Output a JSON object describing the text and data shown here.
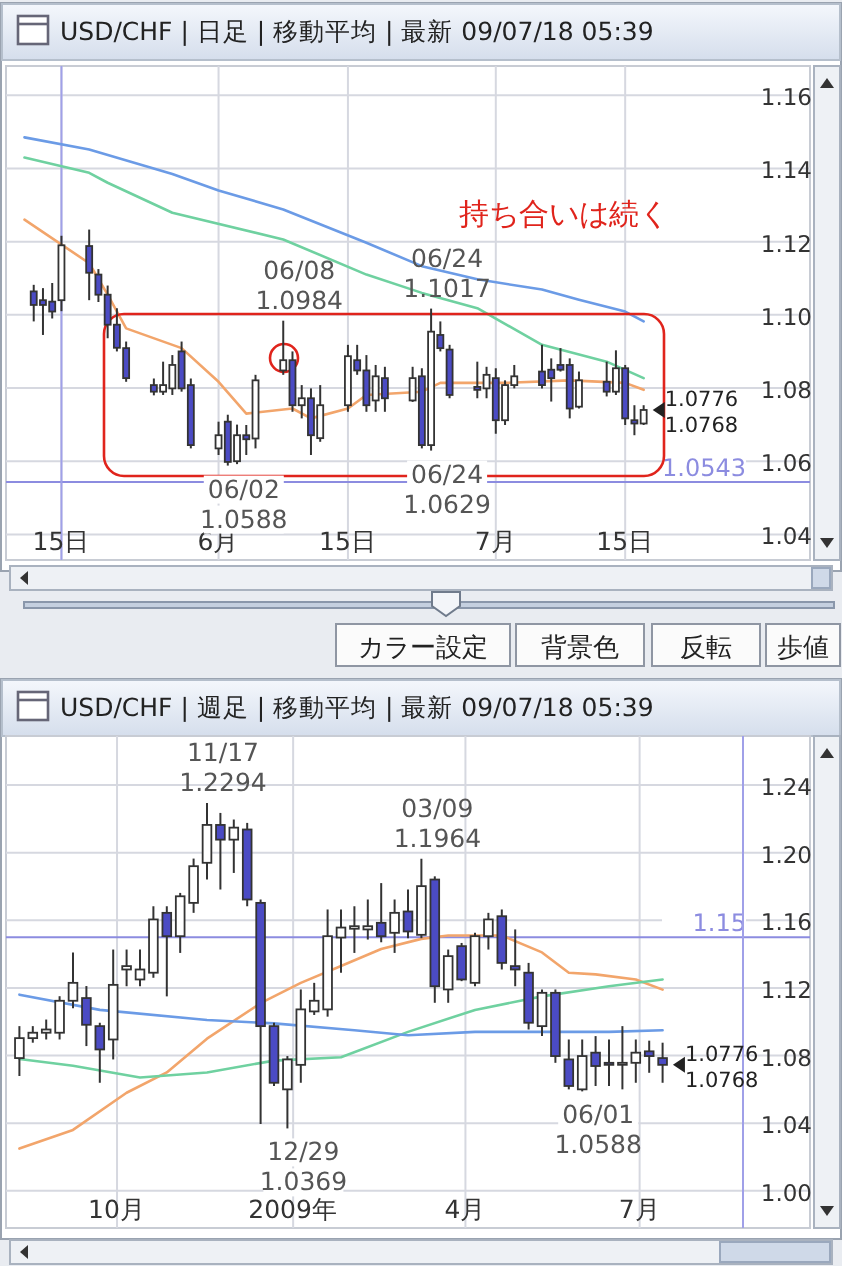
{
  "chart_data": [
    {
      "type": "candlestick",
      "title": "USD/CHF | 日足 | 移動平均 | 最新 09/07/18 05:39",
      "grid": true,
      "xlim": [
        "2009-05-09",
        "2009-08-04"
      ],
      "ylim": [
        1.033,
        1.168
      ],
      "xticks": [
        {
          "value": "2009-05-15",
          "label": "15日"
        },
        {
          "value": "2009-06-01",
          "label": "6月"
        },
        {
          "value": "2009-06-15",
          "label": "15日"
        },
        {
          "value": "2009-07-01",
          "label": "7月"
        },
        {
          "value": "2009-07-15",
          "label": "15日"
        }
      ],
      "yticks": [
        {
          "value": 1.04,
          "label": "1.04"
        },
        {
          "value": 1.06,
          "label": "1.06"
        },
        {
          "value": 1.08,
          "label": "1.08"
        },
        {
          "value": 1.1,
          "label": "1.10"
        },
        {
          "value": 1.12,
          "label": "1.12"
        },
        {
          "value": 1.14,
          "label": "1.14"
        },
        {
          "value": 1.16,
          "label": "1.16"
        }
      ],
      "x": [
        "2009-05-12",
        "2009-05-13",
        "2009-05-14",
        "2009-05-15",
        "2009-05-18",
        "2009-05-19",
        "2009-05-20",
        "2009-05-21",
        "2009-05-22",
        "2009-05-25",
        "2009-05-26",
        "2009-05-27",
        "2009-05-28",
        "2009-05-29",
        "2009-06-01",
        "2009-06-02",
        "2009-06-03",
        "2009-06-04",
        "2009-06-05",
        "2009-06-08",
        "2009-06-09",
        "2009-06-10",
        "2009-06-11",
        "2009-06-12",
        "2009-06-15",
        "2009-06-16",
        "2009-06-17",
        "2009-06-18",
        "2009-06-19",
        "2009-06-22",
        "2009-06-23",
        "2009-06-24",
        "2009-06-25",
        "2009-06-26",
        "2009-06-29",
        "2009-06-30",
        "2009-07-01",
        "2009-07-02",
        "2009-07-03",
        "2009-07-06",
        "2009-07-07",
        "2009-07-08",
        "2009-07-09",
        "2009-07-10",
        "2009-07-13",
        "2009-07-14",
        "2009-07-15",
        "2009-07-16",
        "2009-07-17"
      ],
      "ohlc": [
        [
          1.1064,
          1.1082,
          1.0982,
          1.1027
        ],
        [
          1.104,
          1.1073,
          1.0945,
          1.1027
        ],
        [
          1.1036,
          1.1087,
          1.099,
          1.1009
        ],
        [
          1.104,
          1.1216,
          1.101,
          1.119
        ],
        [
          1.1188,
          1.1233,
          1.104,
          1.1115
        ],
        [
          1.111,
          1.1125,
          1.1035,
          1.1055
        ],
        [
          1.1055,
          1.108,
          1.0936,
          1.0973
        ],
        [
          1.0973,
          1.1018,
          1.09,
          1.091
        ],
        [
          1.0909,
          1.0927,
          1.0817,
          1.0827
        ],
        [
          1.0808,
          1.0826,
          1.078,
          1.079
        ],
        [
          1.079,
          1.0872,
          1.0781,
          1.0808
        ],
        [
          1.0799,
          1.089,
          1.0781,
          1.0863
        ],
        [
          1.09,
          1.0927,
          1.079,
          1.0799
        ],
        [
          1.0808,
          1.0826,
          1.0635,
          1.0644
        ],
        [
          1.0635,
          1.0708,
          1.0617,
          1.0671
        ],
        [
          1.0708,
          1.0727,
          1.0588,
          1.0598
        ],
        [
          1.06,
          1.07,
          1.0592,
          1.0671
        ],
        [
          1.0671,
          1.0699,
          1.0617,
          1.066
        ],
        [
          1.0662,
          1.0836,
          1.0635,
          1.0821
        ],
        [
          1.0848,
          1.0984,
          1.0836,
          1.0876
        ],
        [
          1.0876,
          1.09,
          1.0735,
          1.0753
        ],
        [
          1.0753,
          1.0808,
          1.0717,
          1.0772
        ],
        [
          1.0772,
          1.0799,
          1.0617,
          1.0671
        ],
        [
          1.0663,
          1.0808,
          1.0653,
          1.0753
        ],
        [
          1.0753,
          1.0918,
          1.0735,
          1.0887
        ],
        [
          1.0876,
          1.0918,
          1.0836,
          1.0848
        ],
        [
          1.0848,
          1.089,
          1.0735,
          1.0753
        ],
        [
          1.0766,
          1.0863,
          1.0735,
          1.0832
        ],
        [
          1.0827,
          1.0858,
          1.0735,
          1.0772
        ],
        [
          1.0766,
          1.0858,
          1.0762,
          1.0827
        ],
        [
          1.0832,
          1.0854,
          1.0635,
          1.0644
        ],
        [
          1.0644,
          1.1017,
          1.0629,
          1.0954
        ],
        [
          1.0945,
          1.0982,
          1.09,
          1.0909
        ],
        [
          1.0905,
          1.0918,
          1.0772,
          1.0781
        ],
        [
          1.0803,
          1.0872,
          1.0772,
          1.0795
        ],
        [
          1.0799,
          1.0858,
          1.0772,
          1.0836
        ],
        [
          1.0827,
          1.0854,
          1.0675,
          1.0712
        ],
        [
          1.0712,
          1.0821,
          1.0699,
          1.0808
        ],
        [
          1.0808,
          1.0863,
          1.0799,
          1.0832
        ],
        [
          1.0845,
          1.0918,
          1.0799,
          1.0808
        ],
        [
          1.085,
          1.0881,
          1.0763,
          1.0827
        ],
        [
          1.0863,
          1.0909,
          1.0845,
          1.085
        ],
        [
          1.0863,
          1.0881,
          1.0717,
          1.0744
        ],
        [
          1.0749,
          1.0845,
          1.0744,
          1.0821
        ],
        [
          1.0817,
          1.0872,
          1.0777,
          1.079
        ],
        [
          1.079,
          1.0903,
          1.0781,
          1.0854
        ],
        [
          1.0854,
          1.0863,
          1.0699,
          1.0717
        ],
        [
          1.0712,
          1.0753,
          1.0671,
          1.0703
        ],
        [
          1.0703,
          1.0753,
          1.0699,
          1.074
        ]
      ],
      "series": [
        {
          "type": "line",
          "color": "#6b9be6",
          "x": [
            "2009-05-11",
            "2009-05-18",
            "2009-05-27",
            "2009-06-01",
            "2009-06-08",
            "2009-06-17",
            "2009-06-23",
            "2009-06-29",
            "2009-07-06",
            "2009-07-10",
            "2009-07-15",
            "2009-07-17"
          ],
          "values": [
            1.1485,
            1.1452,
            1.1385,
            1.134,
            1.1288,
            1.1197,
            1.1133,
            1.1097,
            1.1069,
            1.1041,
            1.1009,
            1.0982
          ]
        },
        {
          "type": "line",
          "color": "#6fd1a0",
          "x": [
            "2009-05-11",
            "2009-05-18",
            "2009-05-20",
            "2009-05-27",
            "2009-06-08",
            "2009-06-17",
            "2009-06-23",
            "2009-06-29",
            "2009-07-06",
            "2009-07-13",
            "2009-07-17"
          ],
          "values": [
            1.143,
            1.1388,
            1.1361,
            1.1279,
            1.1206,
            1.111,
            1.106,
            1.1018,
            1.0918,
            1.0872,
            1.0827
          ]
        },
        {
          "type": "line",
          "color": "#f2a56b",
          "x": [
            "2009-05-11",
            "2009-05-18",
            "2009-05-20",
            "2009-05-22",
            "2009-05-28",
            "2009-06-01",
            "2009-06-04",
            "2009-06-09",
            "2009-06-11",
            "2009-06-15",
            "2009-06-17",
            "2009-06-23",
            "2009-06-25",
            "2009-07-02",
            "2009-07-09",
            "2009-07-15",
            "2009-07-17"
          ],
          "values": [
            1.126,
            1.1141,
            1.1055,
            1.0963,
            1.0909,
            1.0817,
            1.073,
            1.0744,
            1.0717,
            1.0744,
            1.0781,
            1.079,
            1.0814,
            1.0814,
            1.0821,
            1.0814,
            1.0795
          ]
        }
      ],
      "ref_lines": [
        {
          "axis": "y",
          "value": 1.0543,
          "label": "1.0543",
          "color": "#8c8ce0"
        },
        {
          "axis": "x",
          "value": "2009-05-15",
          "color": "#a0a0e8"
        }
      ],
      "annotations": [
        "1.0776",
        "1.0768",
        "持ち合いは続く",
        "カラー設定",
        "背景色",
        "反転",
        "歩値",
        {
          "text": "06/08\n1.0984",
          "x": "2009-06-08",
          "y": 1.0984
        },
        {
          "text": "06/24\n1.1017",
          "x": "2009-06-24",
          "y": 1.1017
        },
        {
          "text": "06/02\n1.0588",
          "x": "2009-06-02",
          "y": 1.0588
        },
        {
          "text": "06/24\n1.0629",
          "x": "2009-06-24",
          "y": 1.0629
        }
      ]
    },
    {
      "type": "candlestick",
      "title": "USD/CHF | 週足 | 移動平均 | 最新 09/07/18 05:39",
      "grid": true,
      "xlim": [
        "2008-08-04",
        "2009-09-28"
      ],
      "ylim": [
        0.978,
        1.269
      ],
      "xticks": [
        {
          "value": "2008-10-01",
          "label": "10月"
        },
        {
          "value": "2009-01-01",
          "label": "2009年"
        },
        {
          "value": "2009-04-01",
          "label": "4月"
        },
        {
          "value": "2009-07-01",
          "label": "7月"
        }
      ],
      "yticks": [
        {
          "value": 1.0,
          "label": "1.00"
        },
        {
          "value": 1.04,
          "label": "1.04"
        },
        {
          "value": 1.08,
          "label": "1.08"
        },
        {
          "value": 1.12,
          "label": "1.12"
        },
        {
          "value": 1.16,
          "label": "1.16"
        },
        {
          "value": 1.2,
          "label": "1.20"
        },
        {
          "value": 1.24,
          "label": "1.24"
        }
      ],
      "x": [
        "2008-08-11",
        "2008-08-18",
        "2008-08-25",
        "2008-09-01",
        "2008-09-08",
        "2008-09-15",
        "2008-09-22",
        "2008-09-29",
        "2008-10-06",
        "2008-10-13",
        "2008-10-20",
        "2008-10-27",
        "2008-11-03",
        "2008-11-10",
        "2008-11-17",
        "2008-11-24",
        "2008-12-01",
        "2008-12-08",
        "2008-12-15",
        "2008-12-22",
        "2008-12-29",
        "2009-01-05",
        "2009-01-12",
        "2009-01-19",
        "2009-01-26",
        "2009-02-02",
        "2009-02-09",
        "2009-02-16",
        "2009-02-23",
        "2009-03-02",
        "2009-03-09",
        "2009-03-16",
        "2009-03-23",
        "2009-03-30",
        "2009-04-06",
        "2009-04-13",
        "2009-04-20",
        "2009-04-27",
        "2009-05-04",
        "2009-05-11",
        "2009-05-18",
        "2009-05-25",
        "2009-06-01",
        "2009-06-08",
        "2009-06-15",
        "2009-06-22",
        "2009-06-29",
        "2009-07-06",
        "2009-07-13"
      ],
      "ohlc": [
        [
          1.0785,
          1.0974,
          1.0679,
          1.0903
        ],
        [
          1.0903,
          1.0974,
          1.0876,
          1.0935
        ],
        [
          1.0935,
          1.1013,
          1.0895,
          1.0954
        ],
        [
          1.0935,
          1.1151,
          1.0895,
          1.1124
        ],
        [
          1.1124,
          1.141,
          1.108,
          1.123
        ],
        [
          1.114,
          1.1211,
          1.0856,
          1.0982
        ],
        [
          1.0974,
          1.0994,
          1.0639,
          1.0836
        ],
        [
          1.0895,
          1.1427,
          1.0777,
          1.1218
        ],
        [
          1.1309,
          1.1427,
          1.121,
          1.1329
        ],
        [
          1.125,
          1.1427,
          1.121,
          1.1309
        ],
        [
          1.129,
          1.1683,
          1.126,
          1.1605
        ],
        [
          1.1644,
          1.1683,
          1.115,
          1.1506
        ],
        [
          1.1506,
          1.1762,
          1.1407,
          1.1742
        ],
        [
          1.1703,
          1.1965,
          1.1644,
          1.192
        ],
        [
          1.194,
          1.2294,
          1.1841,
          1.2164
        ],
        [
          1.2164,
          1.2235,
          1.1782,
          1.2077
        ],
        [
          1.2077,
          1.2196,
          1.188,
          1.2148
        ],
        [
          1.2137,
          1.2176,
          1.1683,
          1.1723
        ],
        [
          1.1703,
          1.1723,
          1.0395,
          1.0974
        ],
        [
          1.0974,
          1.0994,
          1.062,
          1.0639
        ],
        [
          1.06,
          1.0797,
          1.0369,
          1.0777
        ],
        [
          1.0745,
          1.1191,
          1.0639,
          1.1073
        ],
        [
          1.1061,
          1.123,
          1.104,
          1.1124
        ],
        [
          1.1073,
          1.1664,
          1.103,
          1.1506
        ],
        [
          1.1498,
          1.1664,
          1.129,
          1.1557
        ],
        [
          1.155,
          1.1683,
          1.1407,
          1.1565
        ],
        [
          1.1546,
          1.1723,
          1.1486,
          1.1565
        ],
        [
          1.1585,
          1.182,
          1.147,
          1.1506
        ],
        [
          1.1526,
          1.1723,
          1.1407,
          1.1644
        ],
        [
          1.1652,
          1.1782,
          1.1494,
          1.1534
        ],
        [
          1.1514,
          1.1964,
          1.1494,
          1.1802
        ],
        [
          1.1841,
          1.186,
          1.1112,
          1.121
        ],
        [
          1.1191,
          1.1427,
          1.1112,
          1.1388
        ],
        [
          1.1447,
          1.1466,
          1.124,
          1.125
        ],
        [
          1.123,
          1.1526,
          1.121,
          1.1506
        ],
        [
          1.1506,
          1.1644,
          1.1427,
          1.1605
        ],
        [
          1.1624,
          1.1664,
          1.1309,
          1.1348
        ],
        [
          1.1329,
          1.1546,
          1.121,
          1.1309
        ],
        [
          1.129,
          1.1348,
          1.0954,
          1.0994
        ],
        [
          1.0974,
          1.1191,
          1.0915,
          1.1171
        ],
        [
          1.1171,
          1.1191,
          1.0757,
          1.0797
        ],
        [
          1.0777,
          1.0895,
          1.06,
          1.062
        ],
        [
          1.06,
          1.0895,
          1.0588,
          1.0797
        ],
        [
          1.0817,
          1.0915,
          1.062,
          1.0738
        ],
        [
          1.0757,
          1.0895,
          1.062,
          1.0745
        ],
        [
          1.0751,
          1.0974,
          1.06,
          1.0757
        ],
        [
          1.0757,
          1.0895,
          1.0639,
          1.0817
        ],
        [
          1.0825,
          1.0888,
          1.0698,
          1.0797
        ],
        [
          1.0785,
          1.0876,
          1.0639,
          1.0745
        ]
      ],
      "series": [
        {
          "type": "line",
          "color": "#f2a56b",
          "x": [
            "2008-08-11",
            "2008-09-08",
            "2008-10-06",
            "2008-10-27",
            "2008-11-17",
            "2008-12-15",
            "2009-01-05",
            "2009-01-26",
            "2009-02-16",
            "2009-03-09",
            "2009-03-23",
            "2009-04-20",
            "2009-05-11",
            "2009-05-25",
            "2009-06-08",
            "2009-06-29",
            "2009-07-13"
          ],
          "values": [
            1.025,
            1.036,
            1.058,
            1.07,
            1.09,
            1.111,
            1.123,
            1.133,
            1.143,
            1.149,
            1.151,
            1.151,
            1.141,
            1.129,
            1.128,
            1.125,
            1.119
          ]
        },
        {
          "type": "line",
          "color": "#6fd1a0",
          "x": [
            "2008-08-11",
            "2008-09-08",
            "2008-10-13",
            "2008-11-17",
            "2008-12-22",
            "2009-01-26",
            "2009-03-02",
            "2009-04-06",
            "2009-05-11",
            "2009-06-15",
            "2009-07-13"
          ],
          "values": [
            1.078,
            1.074,
            1.067,
            1.07,
            1.077,
            1.079,
            1.094,
            1.107,
            1.115,
            1.121,
            1.125
          ]
        },
        {
          "type": "line",
          "color": "#6b9be6",
          "x": [
            "2008-08-11",
            "2008-09-22",
            "2008-11-17",
            "2008-12-22",
            "2009-02-02",
            "2009-03-02",
            "2009-04-06",
            "2009-05-11",
            "2009-06-15",
            "2009-07-13"
          ],
          "values": [
            1.116,
            1.107,
            1.101,
            1.099,
            1.095,
            1.092,
            1.094,
            1.094,
            1.094,
            1.095
          ]
        }
      ],
      "ref_lines": [
        {
          "axis": "y",
          "value": 1.15,
          "label": "1.15",
          "color": "#8c8ce0"
        },
        {
          "axis": "x",
          "value": "2009-08-24",
          "color": "#a0a0e8"
        }
      ],
      "annotations": [
        "1.0776",
        "1.0768",
        {
          "text": "11/17\n1.2294",
          "x": "2008-11-17",
          "y": 1.2294
        },
        {
          "text": "03/09\n1.1964",
          "x": "2009-03-09",
          "y": 1.1964
        },
        {
          "text": "12/29\n1.0369",
          "x": "2008-12-29",
          "y": 1.0369
        },
        {
          "text": "06/01\n1.0588",
          "x": "2009-06-01",
          "y": 1.0588
        }
      ]
    }
  ]
}
